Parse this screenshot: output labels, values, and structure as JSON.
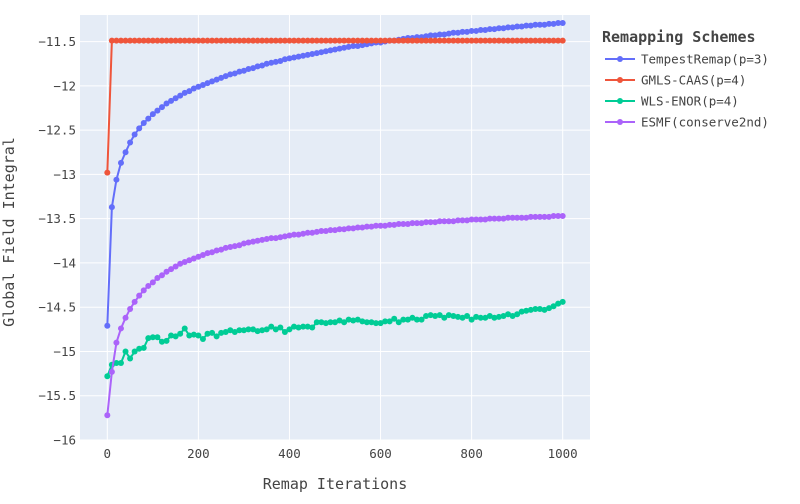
{
  "chart_data": {
    "type": "line",
    "xlabel": "Remap Iterations",
    "ylabel": "Global Field Integral",
    "xlim": [
      -60,
      1060
    ],
    "ylim": [
      -16.0,
      -11.2
    ],
    "xticks": [
      0,
      200,
      400,
      600,
      800,
      1000
    ],
    "xtick_labels": [
      "0",
      "200",
      "400",
      "600",
      "800",
      "1000"
    ],
    "yticks": [
      -16,
      -15.5,
      -15,
      -14.5,
      -14,
      -13.5,
      -13,
      -12.5,
      -12,
      -11.5
    ],
    "ytick_labels": [
      "−16",
      "−15.5",
      "−15",
      "−14.5",
      "−14",
      "−13.5",
      "−13",
      "−12.5",
      "−12",
      "−11.5"
    ],
    "grid": true,
    "legend": {
      "title": "Remapping Schemes",
      "position": "right"
    },
    "plot_background": "#e5ecf6",
    "x": [
      0,
      10,
      20,
      30,
      40,
      50,
      60,
      70,
      80,
      90,
      100,
      110,
      120,
      130,
      140,
      150,
      160,
      170,
      180,
      190,
      200,
      210,
      220,
      230,
      240,
      250,
      260,
      270,
      280,
      290,
      300,
      310,
      320,
      330,
      340,
      350,
      360,
      370,
      380,
      390,
      400,
      410,
      420,
      430,
      440,
      450,
      460,
      470,
      480,
      490,
      500,
      510,
      520,
      530,
      540,
      550,
      560,
      570,
      580,
      590,
      600,
      610,
      620,
      630,
      640,
      650,
      660,
      670,
      680,
      690,
      700,
      710,
      720,
      730,
      740,
      750,
      760,
      770,
      780,
      790,
      800,
      810,
      820,
      830,
      840,
      850,
      860,
      870,
      880,
      890,
      900,
      910,
      920,
      930,
      940,
      950,
      960,
      970,
      980,
      990,
      1000
    ],
    "series": [
      {
        "name": "TempestRemap(p=3)",
        "color": "#636efa",
        "values": [
          -14.71,
          -13.37,
          -13.06,
          -12.87,
          -12.75,
          -12.64,
          -12.55,
          -12.48,
          -12.42,
          -12.37,
          -12.32,
          -12.28,
          -12.24,
          -12.2,
          -12.17,
          -12.14,
          -12.11,
          -12.08,
          -12.06,
          -12.03,
          -12.01,
          -11.99,
          -11.97,
          -11.95,
          -11.93,
          -11.91,
          -11.89,
          -11.87,
          -11.86,
          -11.84,
          -11.83,
          -11.81,
          -11.8,
          -11.78,
          -11.77,
          -11.75,
          -11.74,
          -11.73,
          -11.72,
          -11.7,
          -11.69,
          -11.68,
          -11.67,
          -11.66,
          -11.65,
          -11.64,
          -11.63,
          -11.62,
          -11.61,
          -11.6,
          -11.59,
          -11.58,
          -11.57,
          -11.56,
          -11.55,
          -11.55,
          -11.54,
          -11.53,
          -11.52,
          -11.51,
          -11.51,
          -11.5,
          -11.49,
          -11.49,
          -11.48,
          -11.47,
          -11.46,
          -11.46,
          -11.45,
          -11.45,
          -11.44,
          -11.43,
          -11.43,
          -11.42,
          -11.42,
          -11.41,
          -11.4,
          -11.4,
          -11.39,
          -11.39,
          -11.38,
          -11.38,
          -11.37,
          -11.37,
          -11.36,
          -11.36,
          -11.35,
          -11.35,
          -11.34,
          -11.34,
          -11.33,
          -11.33,
          -11.32,
          -11.32,
          -11.31,
          -11.31,
          -11.31,
          -11.3,
          -11.3,
          -11.29,
          -11.29
        ]
      },
      {
        "name": "GMLS-CAAS(p=4)",
        "color": "#ef553b",
        "values": [
          -12.98,
          -11.49,
          -11.49,
          -11.49,
          -11.49,
          -11.49,
          -11.49,
          -11.49,
          -11.49,
          -11.49,
          -11.49,
          -11.49,
          -11.49,
          -11.49,
          -11.49,
          -11.49,
          -11.49,
          -11.49,
          -11.49,
          -11.49,
          -11.49,
          -11.49,
          -11.49,
          -11.49,
          -11.49,
          -11.49,
          -11.49,
          -11.49,
          -11.49,
          -11.49,
          -11.49,
          -11.49,
          -11.49,
          -11.49,
          -11.49,
          -11.49,
          -11.49,
          -11.49,
          -11.49,
          -11.49,
          -11.49,
          -11.49,
          -11.49,
          -11.49,
          -11.49,
          -11.49,
          -11.49,
          -11.49,
          -11.49,
          -11.49,
          -11.49,
          -11.49,
          -11.49,
          -11.49,
          -11.49,
          -11.49,
          -11.49,
          -11.49,
          -11.49,
          -11.49,
          -11.49,
          -11.49,
          -11.49,
          -11.49,
          -11.49,
          -11.49,
          -11.49,
          -11.49,
          -11.49,
          -11.49,
          -11.49,
          -11.49,
          -11.49,
          -11.49,
          -11.49,
          -11.49,
          -11.49,
          -11.49,
          -11.49,
          -11.49,
          -11.49,
          -11.49,
          -11.49,
          -11.49,
          -11.49,
          -11.49,
          -11.49,
          -11.49,
          -11.49,
          -11.49,
          -11.49,
          -11.49,
          -11.49,
          -11.49,
          -11.49,
          -11.49,
          -11.49,
          -11.49,
          -11.49,
          -11.49,
          -11.49
        ]
      },
      {
        "name": "WLS-ENOR(p=4)",
        "color": "#00cc96",
        "values": [
          -15.28,
          -15.15,
          -15.13,
          -15.13,
          -15.0,
          -15.08,
          -15.0,
          -14.97,
          -14.96,
          -14.85,
          -14.84,
          -14.84,
          -14.89,
          -14.88,
          -14.82,
          -14.83,
          -14.8,
          -14.74,
          -14.82,
          -14.81,
          -14.82,
          -14.86,
          -14.8,
          -14.79,
          -14.83,
          -14.79,
          -14.78,
          -14.76,
          -14.78,
          -14.76,
          -14.76,
          -14.75,
          -14.75,
          -14.77,
          -14.76,
          -14.75,
          -14.72,
          -14.75,
          -14.73,
          -14.78,
          -14.75,
          -14.72,
          -14.73,
          -14.72,
          -14.72,
          -14.73,
          -14.67,
          -14.67,
          -14.68,
          -14.67,
          -14.67,
          -14.65,
          -14.67,
          -14.64,
          -14.65,
          -14.64,
          -14.66,
          -14.67,
          -14.67,
          -14.68,
          -14.68,
          -14.66,
          -14.66,
          -14.63,
          -14.67,
          -14.64,
          -14.64,
          -14.62,
          -14.64,
          -14.64,
          -14.6,
          -14.59,
          -14.6,
          -14.59,
          -14.62,
          -14.59,
          -14.6,
          -14.61,
          -14.62,
          -14.6,
          -14.64,
          -14.61,
          -14.62,
          -14.62,
          -14.6,
          -14.62,
          -14.61,
          -14.6,
          -14.58,
          -14.6,
          -14.58,
          -14.55,
          -14.54,
          -14.53,
          -14.52,
          -14.52,
          -14.53,
          -14.51,
          -14.49,
          -14.46,
          -14.44
        ]
      },
      {
        "name": "ESMF(conserve2nd)",
        "color": "#ab63fa",
        "values": [
          -15.72,
          -15.23,
          -14.9,
          -14.74,
          -14.62,
          -14.52,
          -14.44,
          -14.37,
          -14.31,
          -14.26,
          -14.22,
          -14.17,
          -14.14,
          -14.1,
          -14.07,
          -14.04,
          -14.01,
          -13.99,
          -13.97,
          -13.95,
          -13.93,
          -13.91,
          -13.89,
          -13.88,
          -13.86,
          -13.85,
          -13.83,
          -13.82,
          -13.81,
          -13.8,
          -13.78,
          -13.77,
          -13.76,
          -13.75,
          -13.74,
          -13.73,
          -13.72,
          -13.72,
          -13.71,
          -13.7,
          -13.69,
          -13.68,
          -13.68,
          -13.67,
          -13.66,
          -13.66,
          -13.65,
          -13.64,
          -13.64,
          -13.63,
          -13.63,
          -13.62,
          -13.62,
          -13.61,
          -13.61,
          -13.6,
          -13.6,
          -13.59,
          -13.59,
          -13.58,
          -13.58,
          -13.58,
          -13.57,
          -13.57,
          -13.56,
          -13.56,
          -13.56,
          -13.55,
          -13.55,
          -13.55,
          -13.54,
          -13.54,
          -13.54,
          -13.53,
          -13.53,
          -13.53,
          -13.53,
          -13.52,
          -13.52,
          -13.52,
          -13.51,
          -13.51,
          -13.51,
          -13.51,
          -13.5,
          -13.5,
          -13.5,
          -13.5,
          -13.49,
          -13.49,
          -13.49,
          -13.49,
          -13.49,
          -13.48,
          -13.48,
          -13.48,
          -13.48,
          -13.48,
          -13.47,
          -13.47,
          -13.47
        ]
      }
    ]
  }
}
